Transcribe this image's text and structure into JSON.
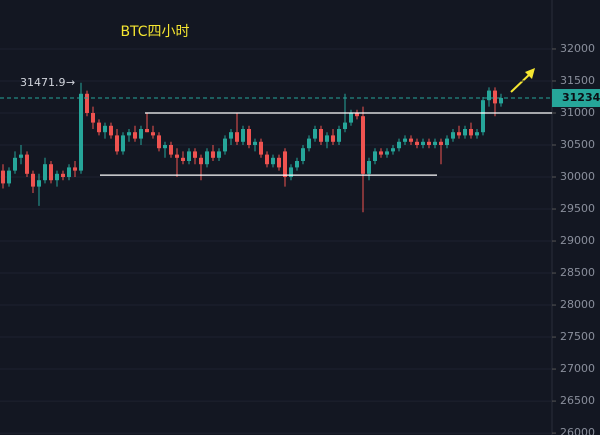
{
  "chart_data": {
    "type": "candlestick",
    "title": "BTC四小时",
    "up_color": "#26a69a",
    "down_color": "#ef5350",
    "open": [
      30100,
      29900,
      30100,
      30300,
      30350,
      30050,
      29850,
      29950,
      30200,
      29950,
      30050,
      30000,
      30150,
      30100,
      31300,
      31000,
      30850,
      30700,
      30800,
      30650,
      30400,
      30650,
      30700,
      30600,
      30750,
      30700,
      30650,
      30450,
      30500,
      30350,
      30300,
      30250,
      30400,
      30300,
      30200,
      30400,
      30300,
      30400,
      30600,
      30700,
      30550,
      30750,
      30500,
      30550,
      30350,
      30200,
      30300,
      30400,
      30000,
      30150,
      30250,
      30450,
      30600,
      30750,
      30550,
      30650,
      30550,
      30750,
      30850,
      31000,
      30950,
      30050,
      30250,
      30400,
      30350,
      30400,
      30450,
      30550,
      30600,
      30550,
      30500,
      30550,
      30500,
      30550,
      30500,
      30600,
      30700,
      30650,
      30750,
      30650,
      30700,
      31200,
      31350,
      31150
    ],
    "high": [
      30200,
      30150,
      30400,
      30500,
      30400,
      30100,
      30050,
      30300,
      30250,
      30100,
      30100,
      30200,
      30250,
      31471.9,
      31350,
      31100,
      30900,
      30850,
      30850,
      30750,
      30700,
      30750,
      30800,
      30800,
      31000,
      30800,
      30700,
      30550,
      30550,
      30450,
      30400,
      30450,
      30450,
      30350,
      30450,
      30500,
      30450,
      30650,
      30750,
      31000,
      30800,
      30800,
      30600,
      30600,
      30400,
      30350,
      30350,
      30450,
      30200,
      30300,
      30500,
      30650,
      30800,
      30800,
      30700,
      30750,
      30800,
      31300,
      31050,
      31050,
      31100,
      30300,
      30450,
      30450,
      30450,
      30500,
      30600,
      30650,
      30650,
      30600,
      30600,
      30600,
      30600,
      30600,
      30650,
      30750,
      30800,
      30800,
      30850,
      30750,
      31250,
      31400,
      31400,
      31300
    ],
    "low": [
      29820,
      29850,
      30050,
      30200,
      30000,
      29750,
      29550,
      29900,
      29900,
      29850,
      29950,
      29950,
      30000,
      30050,
      30950,
      30750,
      30650,
      30600,
      30600,
      30350,
      30350,
      30550,
      30550,
      30500,
      30700,
      30600,
      30400,
      30300,
      30300,
      30000,
      30200,
      30200,
      30200,
      29950,
      30150,
      30250,
      30250,
      30350,
      30500,
      30500,
      30500,
      30450,
      30400,
      30300,
      30150,
      30150,
      30100,
      29850,
      29950,
      30100,
      30200,
      30400,
      30550,
      30500,
      30450,
      30500,
      30500,
      30700,
      30800,
      30900,
      29450,
      29950,
      30200,
      30300,
      30300,
      30350,
      30400,
      30500,
      30500,
      30450,
      30450,
      30450,
      30450,
      30200,
      30450,
      30550,
      30600,
      30600,
      30600,
      30600,
      30650,
      31100,
      30950,
      31100
    ],
    "close": [
      29900,
      30100,
      30300,
      30350,
      30050,
      29850,
      29950,
      30200,
      29950,
      30050,
      30000,
      30150,
      30100,
      31300,
      31000,
      30850,
      30700,
      30800,
      30650,
      30400,
      30650,
      30700,
      30600,
      30750,
      30700,
      30650,
      30450,
      30500,
      30350,
      30300,
      30250,
      30400,
      30300,
      30200,
      30400,
      30300,
      30400,
      30600,
      30700,
      30550,
      30750,
      30500,
      30550,
      30350,
      30200,
      30300,
      30150,
      30000,
      30150,
      30250,
      30450,
      30600,
      30750,
      30550,
      30650,
      30550,
      30750,
      30850,
      31000,
      30950,
      30050,
      30250,
      30400,
      30350,
      30400,
      30450,
      30550,
      30600,
      30550,
      30500,
      30550,
      30500,
      30550,
      30500,
      30600,
      30700,
      30650,
      30750,
      30650,
      30700,
      31200,
      31350,
      31150,
      31234
    ],
    "ylim": [
      25970,
      32765
    ],
    "yticks": [
      32000,
      31500,
      31000,
      30500,
      30000,
      29500,
      29000,
      28500,
      28000,
      27500,
      27000,
      26500,
      26000
    ],
    "grid": true,
    "levels": [
      31000,
      30030
    ],
    "max_price": 31471.9,
    "last_price": {
      "value": 31234,
      "label": "31234."
    }
  }
}
